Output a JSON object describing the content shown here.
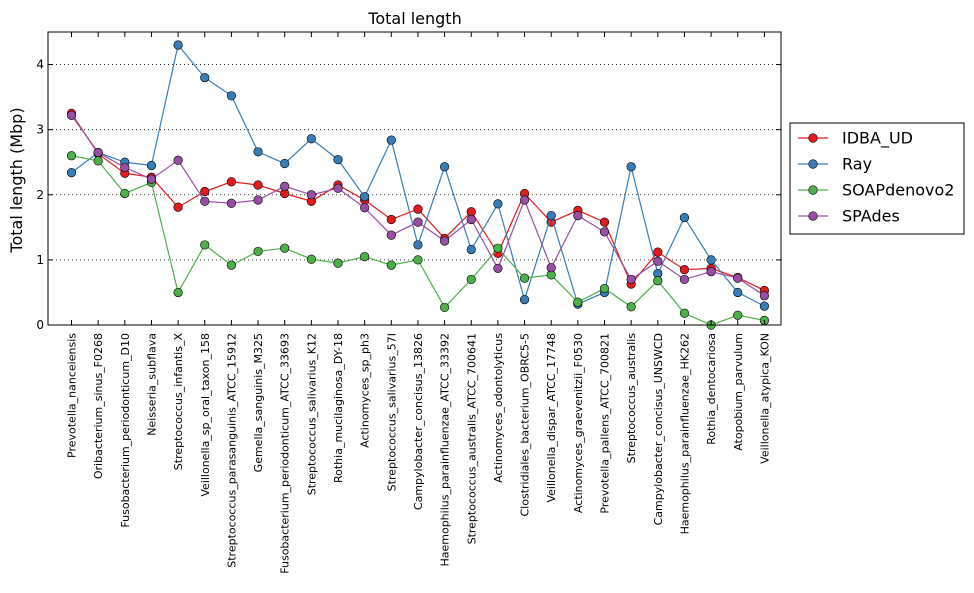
{
  "chart_data": {
    "type": "line",
    "title": "Total length",
    "xlabel": "",
    "ylabel": "Total length (Mbp)",
    "ylim": [
      0,
      4.5
    ],
    "yticks": [
      0,
      1,
      2,
      3,
      4
    ],
    "grid": "horizontal dotted",
    "legend_position": "outside right",
    "categories": [
      "Prevotella_nanceiensis",
      "Oribacterium_sinus_F0268",
      "Fusobacterium_periodonticum_D10",
      "Neisseria_subflava",
      "Streptococcus_infantis_X",
      "Veillonella_sp_oral_taxon_158",
      "Streptococcus_parasanguinis_ATCC_15912",
      "Gemella_sanguinis_M325",
      "Fusobacterium_periodonticum_ATCC_33693",
      "Streptococcus_salivarius_K12",
      "Rothia_mucilaginosa_DY-18",
      "Actinomyces_sp_ph3",
      "Streptococcus_salivarius_57I",
      "Campylobacter_concisus_13826",
      "Haemophilus_parainfluenzae_ATCC_33392",
      "Streptococcus_australis_ATCC_700641",
      "Actinomyces_odontolyticus",
      "Clostridiales_bacterium_OBRC5-5",
      "Veillonella_dispar_ATCC_17748",
      "Actinomyces_graevenitzii_F0530",
      "Prevotella_pallens_ATCC_700821",
      "Streptococcus_australis",
      "Campylobacter_concisus_UNSWCD",
      "Haemophilus_parainfluenzae_HK262",
      "Rothia_dentocariosa",
      "Atopobium_parvulum",
      "Veillonella_atypica_KON"
    ],
    "series": [
      {
        "name": "IDBA_UD",
        "color": "#e41a1c",
        "values": [
          3.25,
          2.63,
          2.33,
          2.27,
          1.81,
          2.05,
          2.2,
          2.15,
          2.02,
          1.9,
          2.15,
          1.92,
          1.62,
          1.78,
          1.33,
          1.74,
          1.1,
          2.02,
          1.58,
          1.76,
          1.58,
          0.63,
          1.12,
          0.85,
          0.87,
          0.73,
          0.53
        ]
      },
      {
        "name": "Ray",
        "color": "#377eb8",
        "values": [
          2.34,
          2.65,
          2.5,
          2.45,
          4.3,
          3.8,
          3.52,
          2.66,
          2.48,
          2.86,
          2.54,
          1.97,
          2.84,
          1.23,
          2.43,
          1.16,
          1.86,
          0.39,
          1.68,
          0.32,
          0.5,
          2.43,
          0.79,
          1.65,
          1.0,
          0.5,
          0.29
        ]
      },
      {
        "name": "SOAPdenovo2",
        "color": "#4daf4a",
        "values": [
          2.6,
          2.52,
          2.02,
          2.19,
          0.5,
          1.23,
          0.92,
          1.13,
          1.18,
          1.01,
          0.95,
          1.05,
          0.92,
          1.0,
          0.27,
          0.7,
          1.18,
          0.72,
          0.77,
          0.35,
          0.56,
          0.28,
          0.68,
          0.18,
          0.0,
          0.15,
          0.07
        ]
      },
      {
        "name": "SPAdes",
        "color": "#984ea3",
        "values": [
          3.22,
          2.65,
          2.42,
          2.24,
          2.53,
          1.9,
          1.87,
          1.92,
          2.13,
          2.0,
          2.1,
          1.8,
          1.38,
          1.58,
          1.29,
          1.62,
          0.87,
          1.92,
          0.88,
          1.68,
          1.43,
          0.7,
          0.98,
          0.7,
          0.82,
          0.72,
          0.45
        ]
      }
    ]
  }
}
